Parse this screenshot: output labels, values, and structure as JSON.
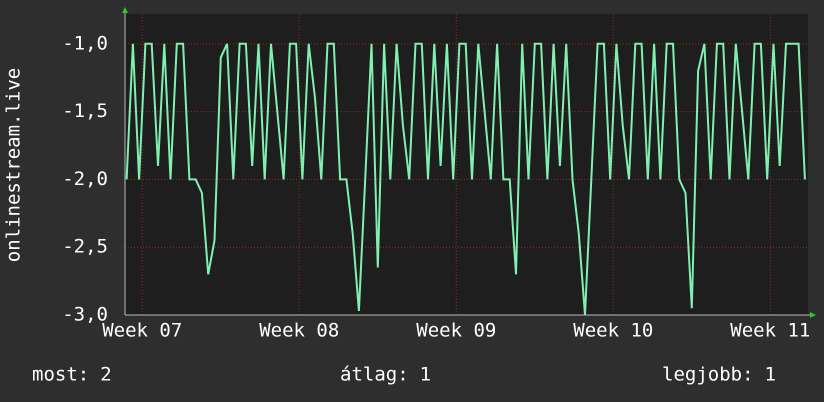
{
  "chart_data": {
    "type": "line",
    "ylabel": "onlinestream.live",
    "xlim": [
      6.89,
      11.24
    ],
    "xticks": [
      {
        "value": 7,
        "label": "Week 07"
      },
      {
        "value": 8,
        "label": "Week 08"
      },
      {
        "value": 9,
        "label": "Week 09"
      },
      {
        "value": 10,
        "label": "Week 10"
      },
      {
        "value": 11,
        "label": "Week 11"
      }
    ],
    "ylim": [
      -3.0,
      -0.78
    ],
    "yticks": [
      {
        "value": -3.0,
        "label": "-3,0"
      },
      {
        "value": -2.5,
        "label": "-2,5"
      },
      {
        "value": -2.0,
        "label": "-2,0"
      },
      {
        "value": -1.5,
        "label": "-1,5"
      },
      {
        "value": -1.0,
        "label": "-1,0"
      }
    ],
    "grid": true,
    "series": [
      {
        "color": "#80f0b0",
        "x": [
          6.9,
          6.94,
          6.98,
          7.02,
          7.06,
          7.1,
          7.14,
          7.18,
          7.22,
          7.26,
          7.3,
          7.34,
          7.38,
          7.42,
          7.46,
          7.5,
          7.54,
          7.58,
          7.62,
          7.66,
          7.7,
          7.74,
          7.78,
          7.82,
          7.86,
          7.9,
          7.94,
          7.98,
          8.02,
          8.06,
          8.1,
          8.14,
          8.18,
          8.22,
          8.26,
          8.3,
          8.34,
          8.38,
          8.42,
          8.46,
          8.5,
          8.54,
          8.58,
          8.62,
          8.66,
          8.7,
          8.74,
          8.78,
          8.82,
          8.86,
          8.9,
          8.94,
          8.98,
          9.02,
          9.06,
          9.1,
          9.14,
          9.18,
          9.22,
          9.26,
          9.3,
          9.34,
          9.38,
          9.42,
          9.46,
          9.5,
          9.54,
          9.58,
          9.62,
          9.66,
          9.7,
          9.74,
          9.78,
          9.82,
          9.86,
          9.9,
          9.94,
          9.98,
          10.02,
          10.06,
          10.1,
          10.14,
          10.18,
          10.22,
          10.26,
          10.3,
          10.34,
          10.38,
          10.42,
          10.46,
          10.5,
          10.54,
          10.58,
          10.62,
          10.66,
          10.7,
          10.74,
          10.78,
          10.82,
          10.86,
          10.9,
          10.94,
          10.98,
          11.02,
          11.06,
          11.1,
          11.14,
          11.18,
          11.22
        ],
        "values": [
          -2.0,
          -1.0,
          -2.0,
          -1.0,
          -1.0,
          -1.9,
          -1.0,
          -2.0,
          -1.0,
          -1.0,
          -2.0,
          -2.0,
          -2.1,
          -2.7,
          -2.45,
          -1.1,
          -1.0,
          -2.0,
          -1.0,
          -1.0,
          -1.9,
          -1.0,
          -2.0,
          -1.0,
          -1.5,
          -2.0,
          -1.0,
          -1.0,
          -2.0,
          -1.0,
          -1.4,
          -2.0,
          -1.0,
          -1.0,
          -2.0,
          -2.0,
          -2.4,
          -2.97,
          -2.0,
          -1.0,
          -2.65,
          -1.0,
          -2.0,
          -1.0,
          -1.6,
          -2.0,
          -1.0,
          -1.0,
          -2.0,
          -1.0,
          -1.9,
          -1.0,
          -2.0,
          -1.0,
          -1.0,
          -2.0,
          -1.0,
          -1.5,
          -2.0,
          -1.0,
          -2.0,
          -2.0,
          -2.7,
          -1.0,
          -2.0,
          -1.0,
          -1.0,
          -2.0,
          -1.0,
          -1.9,
          -1.0,
          -2.0,
          -2.4,
          -3.0,
          -2.0,
          -1.0,
          -1.0,
          -2.0,
          -1.0,
          -1.6,
          -2.0,
          -1.0,
          -1.0,
          -2.0,
          -1.0,
          -2.0,
          -1.0,
          -1.0,
          -2.0,
          -2.1,
          -2.95,
          -1.2,
          -1.0,
          -2.0,
          -1.0,
          -1.0,
          -2.0,
          -1.0,
          -1.5,
          -2.0,
          -1.0,
          -1.0,
          -2.0,
          -1.0,
          -1.9,
          -1.0,
          -1.0,
          -1.0,
          -2.0
        ]
      }
    ],
    "stats": [
      {
        "label": "most:",
        "value": 2
      },
      {
        "label": "átlag:",
        "value": 1
      },
      {
        "label": "legjobb:",
        "value": 1
      }
    ]
  }
}
